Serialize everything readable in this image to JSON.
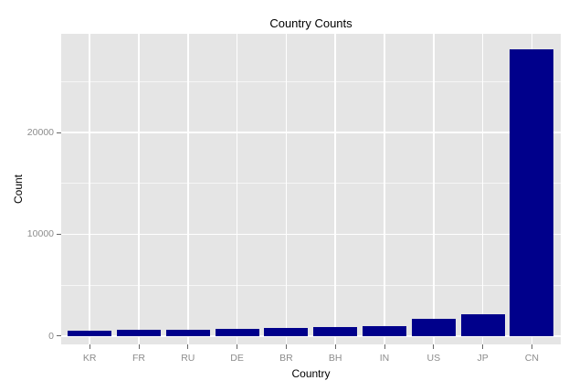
{
  "chart_data": {
    "type": "bar",
    "title": "Country Counts",
    "xlabel": "Country",
    "ylabel": "Count",
    "categories": [
      "KR",
      "FR",
      "RU",
      "DE",
      "BR",
      "BH",
      "IN",
      "US",
      "JP",
      "CN"
    ],
    "values": [
      550,
      620,
      650,
      760,
      840,
      870,
      950,
      1730,
      2120,
      28200
    ],
    "yticks": [
      0,
      10000,
      20000
    ],
    "ytick_labels": [
      "0",
      "10000",
      "20000"
    ],
    "yticks_minor": [
      5000,
      15000,
      25000
    ],
    "ylim": [
      -810,
      29690
    ],
    "grid": "on",
    "legend": "none",
    "colors": {
      "bar": "#00008B",
      "panel_background": "#E5E5E5",
      "gridline": "#FFFFFF",
      "tick_label": "#8C8C8C",
      "tick_mark": "#666666",
      "title_text": "#000000",
      "axis_title_text": "#000000",
      "figure_background": "#FFFFFF"
    }
  }
}
